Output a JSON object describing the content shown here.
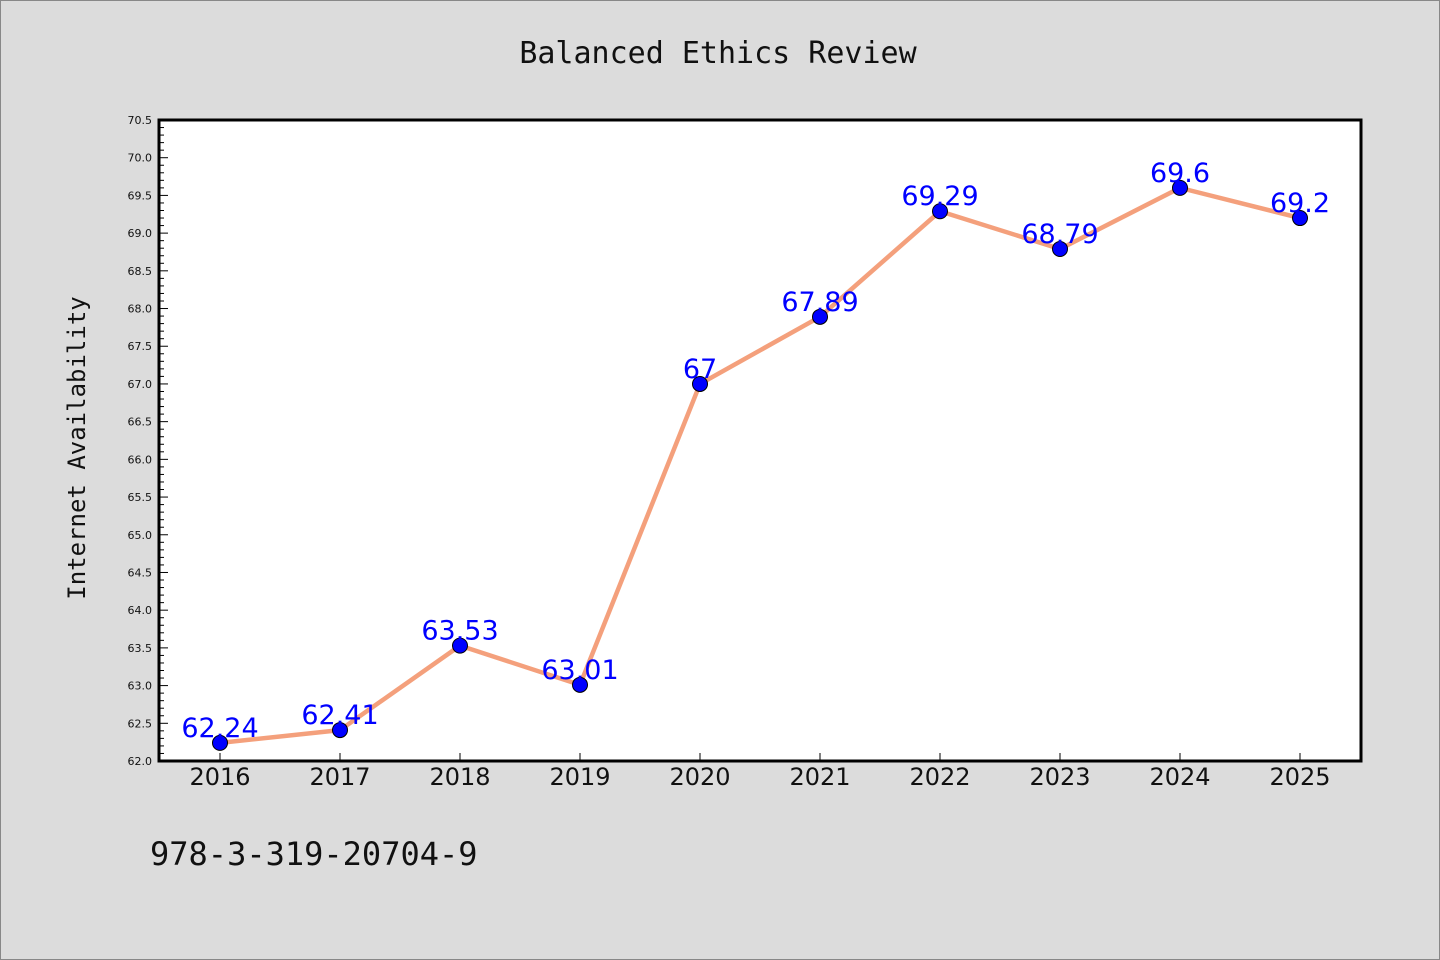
{
  "chart_data": {
    "type": "line",
    "title": "Balanced Ethics Review",
    "xlabel": "",
    "ylabel": "Internet Availability",
    "categories": [
      "2016",
      "2017",
      "2018",
      "2019",
      "2020",
      "2021",
      "2022",
      "2023",
      "2024",
      "2025"
    ],
    "series": [
      {
        "values": [
          62.24,
          62.41,
          63.53,
          63.01,
          67,
          67.89,
          69.29,
          68.79,
          69.6,
          69.2
        ],
        "labels": [
          "62.24",
          "62.41",
          "63.53",
          "63.01",
          "67",
          "67.89",
          "69.29",
          "68.79",
          "69.6",
          "69.2"
        ],
        "line_color": "#f4a07c",
        "marker_color": "#0000ff"
      }
    ],
    "ylim": [
      62.0,
      70.5
    ],
    "yticks": [
      "62.0",
      "62.5",
      "63.0",
      "63.5",
      "64.0",
      "64.5",
      "65.0",
      "65.5",
      "66.0",
      "66.5",
      "67.0",
      "67.5",
      "68.0",
      "68.5",
      "69.0",
      "69.5",
      "70.0",
      "70.5"
    ],
    "grid": false,
    "legend": "none"
  },
  "footer": {
    "isbn": "978-3-319-20704-9"
  },
  "colors": {
    "background": "#dcdcdc",
    "plot_area": "#ffffff",
    "axis": "#000000"
  }
}
